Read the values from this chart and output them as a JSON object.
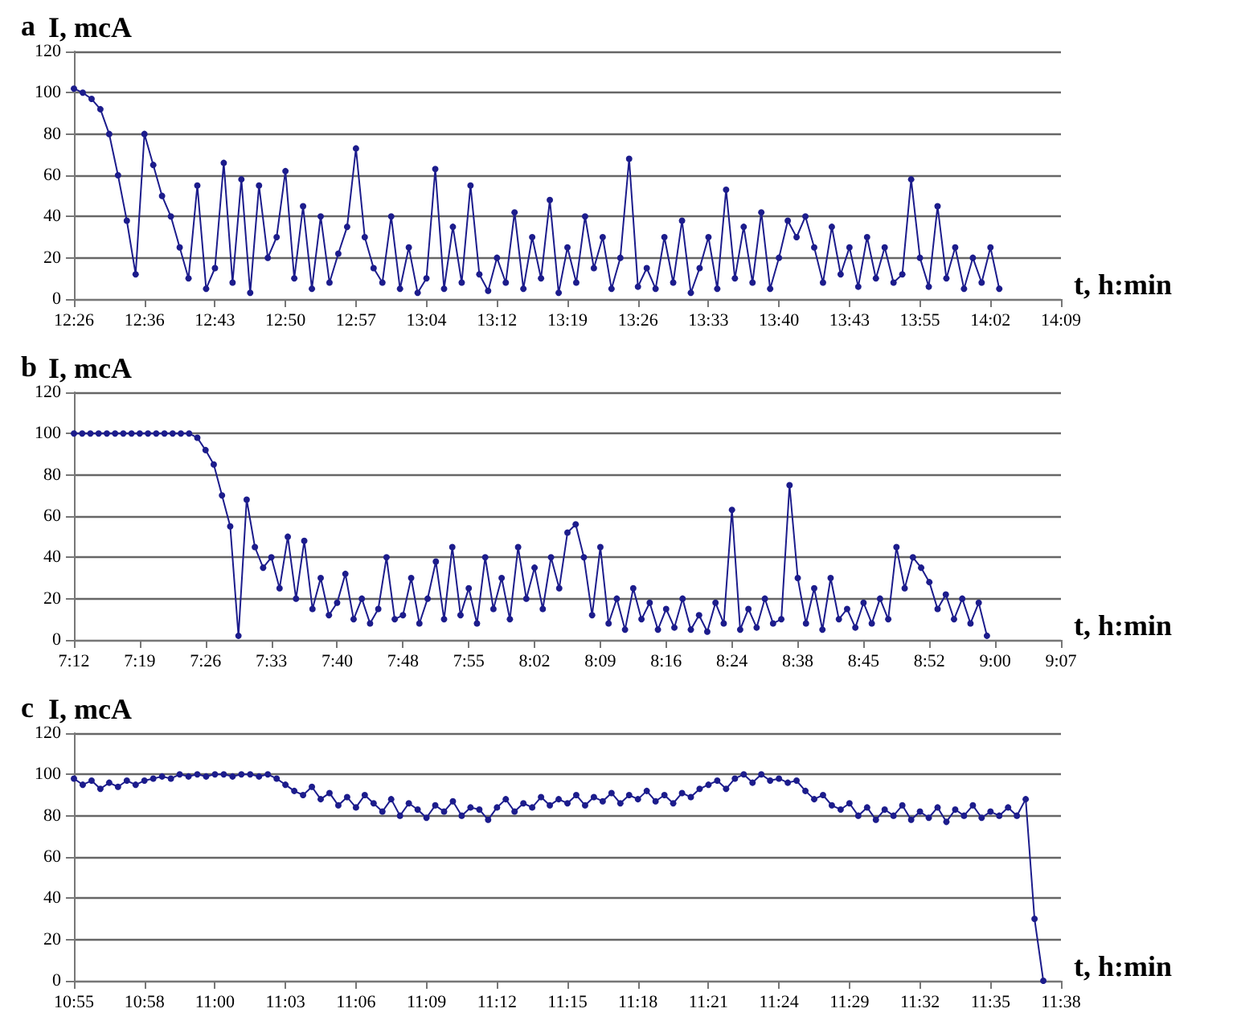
{
  "chart_data": [
    {
      "type": "line",
      "title": "a",
      "ylabel": "I, mcA",
      "xlabel": "t, h:min",
      "color": "#1c1c8c",
      "marker": "circle",
      "grid": "y",
      "ylim": [
        0,
        120
      ],
      "yticks": [
        0,
        20,
        40,
        60,
        80,
        100,
        120
      ],
      "categories": [
        "12:26",
        null,
        null,
        null,
        null,
        null,
        null,
        null,
        "12:36",
        null,
        null,
        null,
        null,
        null,
        null,
        null,
        "12:43",
        null,
        null,
        null,
        null,
        null,
        null,
        null,
        "12:50",
        null,
        null,
        null,
        null,
        null,
        null,
        null,
        "12:57",
        null,
        null,
        null,
        null,
        null,
        null,
        null,
        "13:04",
        null,
        null,
        null,
        null,
        null,
        null,
        null,
        "13:12",
        null,
        null,
        null,
        null,
        null,
        null,
        null,
        "13:19",
        null,
        null,
        null,
        null,
        null,
        null,
        null,
        "13:26",
        null,
        null,
        null,
        null,
        null,
        null,
        null,
        "13:33",
        null,
        null,
        null,
        null,
        null,
        null,
        null,
        "13:40",
        null,
        null,
        null,
        null,
        null,
        null,
        null,
        "13:43",
        null,
        null,
        null,
        null,
        null,
        null,
        null,
        "13:55",
        null,
        null,
        null,
        null,
        null,
        null,
        null,
        "14:02",
        null,
        null,
        null,
        null,
        null,
        null,
        null,
        "14:09"
      ],
      "values": [
        102,
        100,
        97,
        92,
        80,
        60,
        38,
        12,
        80,
        65,
        50,
        40,
        25,
        10,
        55,
        5,
        15,
        66,
        8,
        58,
        3,
        55,
        20,
        30,
        62,
        10,
        45,
        5,
        40,
        8,
        22,
        35,
        73,
        30,
        15,
        8,
        40,
        5,
        25,
        3,
        10,
        63,
        5,
        35,
        8,
        55,
        12,
        4,
        20,
        8,
        42,
        5,
        30,
        10,
        48,
        3,
        25,
        8,
        40,
        15,
        30,
        5,
        20,
        68,
        6,
        15,
        5,
        30,
        8,
        38,
        3,
        15,
        30,
        5,
        53,
        10,
        35,
        8,
        42,
        5,
        20,
        38,
        30,
        40,
        25,
        8,
        35,
        12,
        25,
        6,
        30,
        10,
        25,
        8,
        12,
        58,
        20,
        6,
        45,
        10,
        25,
        5,
        20,
        8,
        25,
        5,
        null,
        null,
        null,
        null,
        null,
        null,
        null
      ]
    },
    {
      "type": "line",
      "title": "b",
      "ylabel": "I, mcA",
      "xlabel": "t, h:min",
      "color": "#1c1c8c",
      "marker": "circle",
      "grid": "y",
      "ylim": [
        0,
        120
      ],
      "yticks": [
        0,
        20,
        40,
        60,
        80,
        100,
        120
      ],
      "categories": [
        "7:12",
        null,
        null,
        null,
        null,
        null,
        null,
        null,
        "7:19",
        null,
        null,
        null,
        null,
        null,
        null,
        null,
        "7:26",
        null,
        null,
        null,
        null,
        null,
        null,
        null,
        "7:33",
        null,
        null,
        null,
        null,
        null,
        null,
        null,
        "7:40",
        null,
        null,
        null,
        null,
        null,
        null,
        null,
        "7:48",
        null,
        null,
        null,
        null,
        null,
        null,
        null,
        "7:55",
        null,
        null,
        null,
        null,
        null,
        null,
        null,
        "8:02",
        null,
        null,
        null,
        null,
        null,
        null,
        null,
        "8:09",
        null,
        null,
        null,
        null,
        null,
        null,
        null,
        "8:16",
        null,
        null,
        null,
        null,
        null,
        null,
        null,
        "8:24",
        null,
        null,
        null,
        null,
        null,
        null,
        null,
        "8:38",
        null,
        null,
        null,
        null,
        null,
        null,
        null,
        "8:45",
        null,
        null,
        null,
        null,
        null,
        null,
        null,
        "8:52",
        null,
        null,
        null,
        null,
        null,
        null,
        null,
        "9:00",
        null,
        null,
        null,
        null,
        null,
        null,
        null,
        "9:07"
      ],
      "values": [
        100,
        100,
        100,
        100,
        100,
        100,
        100,
        100,
        100,
        100,
        100,
        100,
        100,
        100,
        100,
        98,
        92,
        85,
        70,
        55,
        2,
        68,
        45,
        35,
        40,
        25,
        50,
        20,
        48,
        15,
        30,
        12,
        18,
        32,
        10,
        20,
        8,
        15,
        40,
        10,
        12,
        30,
        8,
        20,
        38,
        10,
        45,
        12,
        25,
        8,
        40,
        15,
        30,
        10,
        45,
        20,
        35,
        15,
        40,
        25,
        52,
        56,
        40,
        12,
        45,
        8,
        20,
        5,
        25,
        10,
        18,
        5,
        15,
        6,
        20,
        5,
        12,
        4,
        18,
        8,
        63,
        5,
        15,
        6,
        20,
        8,
        10,
        75,
        30,
        8,
        25,
        5,
        30,
        10,
        15,
        6,
        18,
        8,
        20,
        10,
        45,
        25,
        40,
        35,
        28,
        15,
        22,
        10,
        20,
        8,
        18,
        2,
        null,
        null,
        null,
        null,
        null,
        null,
        null,
        null,
        null
      ]
    },
    {
      "type": "line",
      "title": "c",
      "ylabel": "I, mcA",
      "xlabel": "t, h:min",
      "color": "#1c1c8c",
      "marker": "circle",
      "grid": "y",
      "ylim": [
        0,
        120
      ],
      "yticks": [
        0,
        20,
        40,
        60,
        80,
        100,
        120
      ],
      "categories": [
        "10:55",
        null,
        null,
        null,
        null,
        null,
        null,
        null,
        "10:58",
        null,
        null,
        null,
        null,
        null,
        null,
        null,
        "11:00",
        null,
        null,
        null,
        null,
        null,
        null,
        null,
        "11:03",
        null,
        null,
        null,
        null,
        null,
        null,
        null,
        "11:06",
        null,
        null,
        null,
        null,
        null,
        null,
        null,
        "11:09",
        null,
        null,
        null,
        null,
        null,
        null,
        null,
        "11:12",
        null,
        null,
        null,
        null,
        null,
        null,
        null,
        "11:15",
        null,
        null,
        null,
        null,
        null,
        null,
        null,
        "11:18",
        null,
        null,
        null,
        null,
        null,
        null,
        null,
        "11:21",
        null,
        null,
        null,
        null,
        null,
        null,
        null,
        "11:24",
        null,
        null,
        null,
        null,
        null,
        null,
        null,
        "11:29",
        null,
        null,
        null,
        null,
        null,
        null,
        null,
        "11:32",
        null,
        null,
        null,
        null,
        null,
        null,
        null,
        "11:35",
        null,
        null,
        null,
        null,
        null,
        null,
        null,
        "11:38"
      ],
      "values": [
        98,
        95,
        97,
        93,
        96,
        94,
        97,
        95,
        97,
        98,
        99,
        98,
        100,
        99,
        100,
        99,
        100,
        100,
        99,
        100,
        100,
        99,
        100,
        98,
        95,
        92,
        90,
        94,
        88,
        91,
        85,
        89,
        84,
        90,
        86,
        82,
        88,
        80,
        86,
        83,
        79,
        85,
        82,
        87,
        80,
        84,
        83,
        78,
        84,
        88,
        82,
        86,
        84,
        89,
        85,
        88,
        86,
        90,
        85,
        89,
        87,
        91,
        86,
        90,
        88,
        92,
        87,
        90,
        86,
        91,
        89,
        93,
        95,
        97,
        93,
        98,
        100,
        96,
        100,
        97,
        98,
        96,
        97,
        92,
        88,
        90,
        85,
        83,
        86,
        80,
        84,
        78,
        83,
        80,
        85,
        78,
        82,
        79,
        84,
        77,
        83,
        80,
        85,
        79,
        82,
        80,
        84,
        80,
        88,
        30,
        0,
        null,
        null
      ]
    }
  ]
}
